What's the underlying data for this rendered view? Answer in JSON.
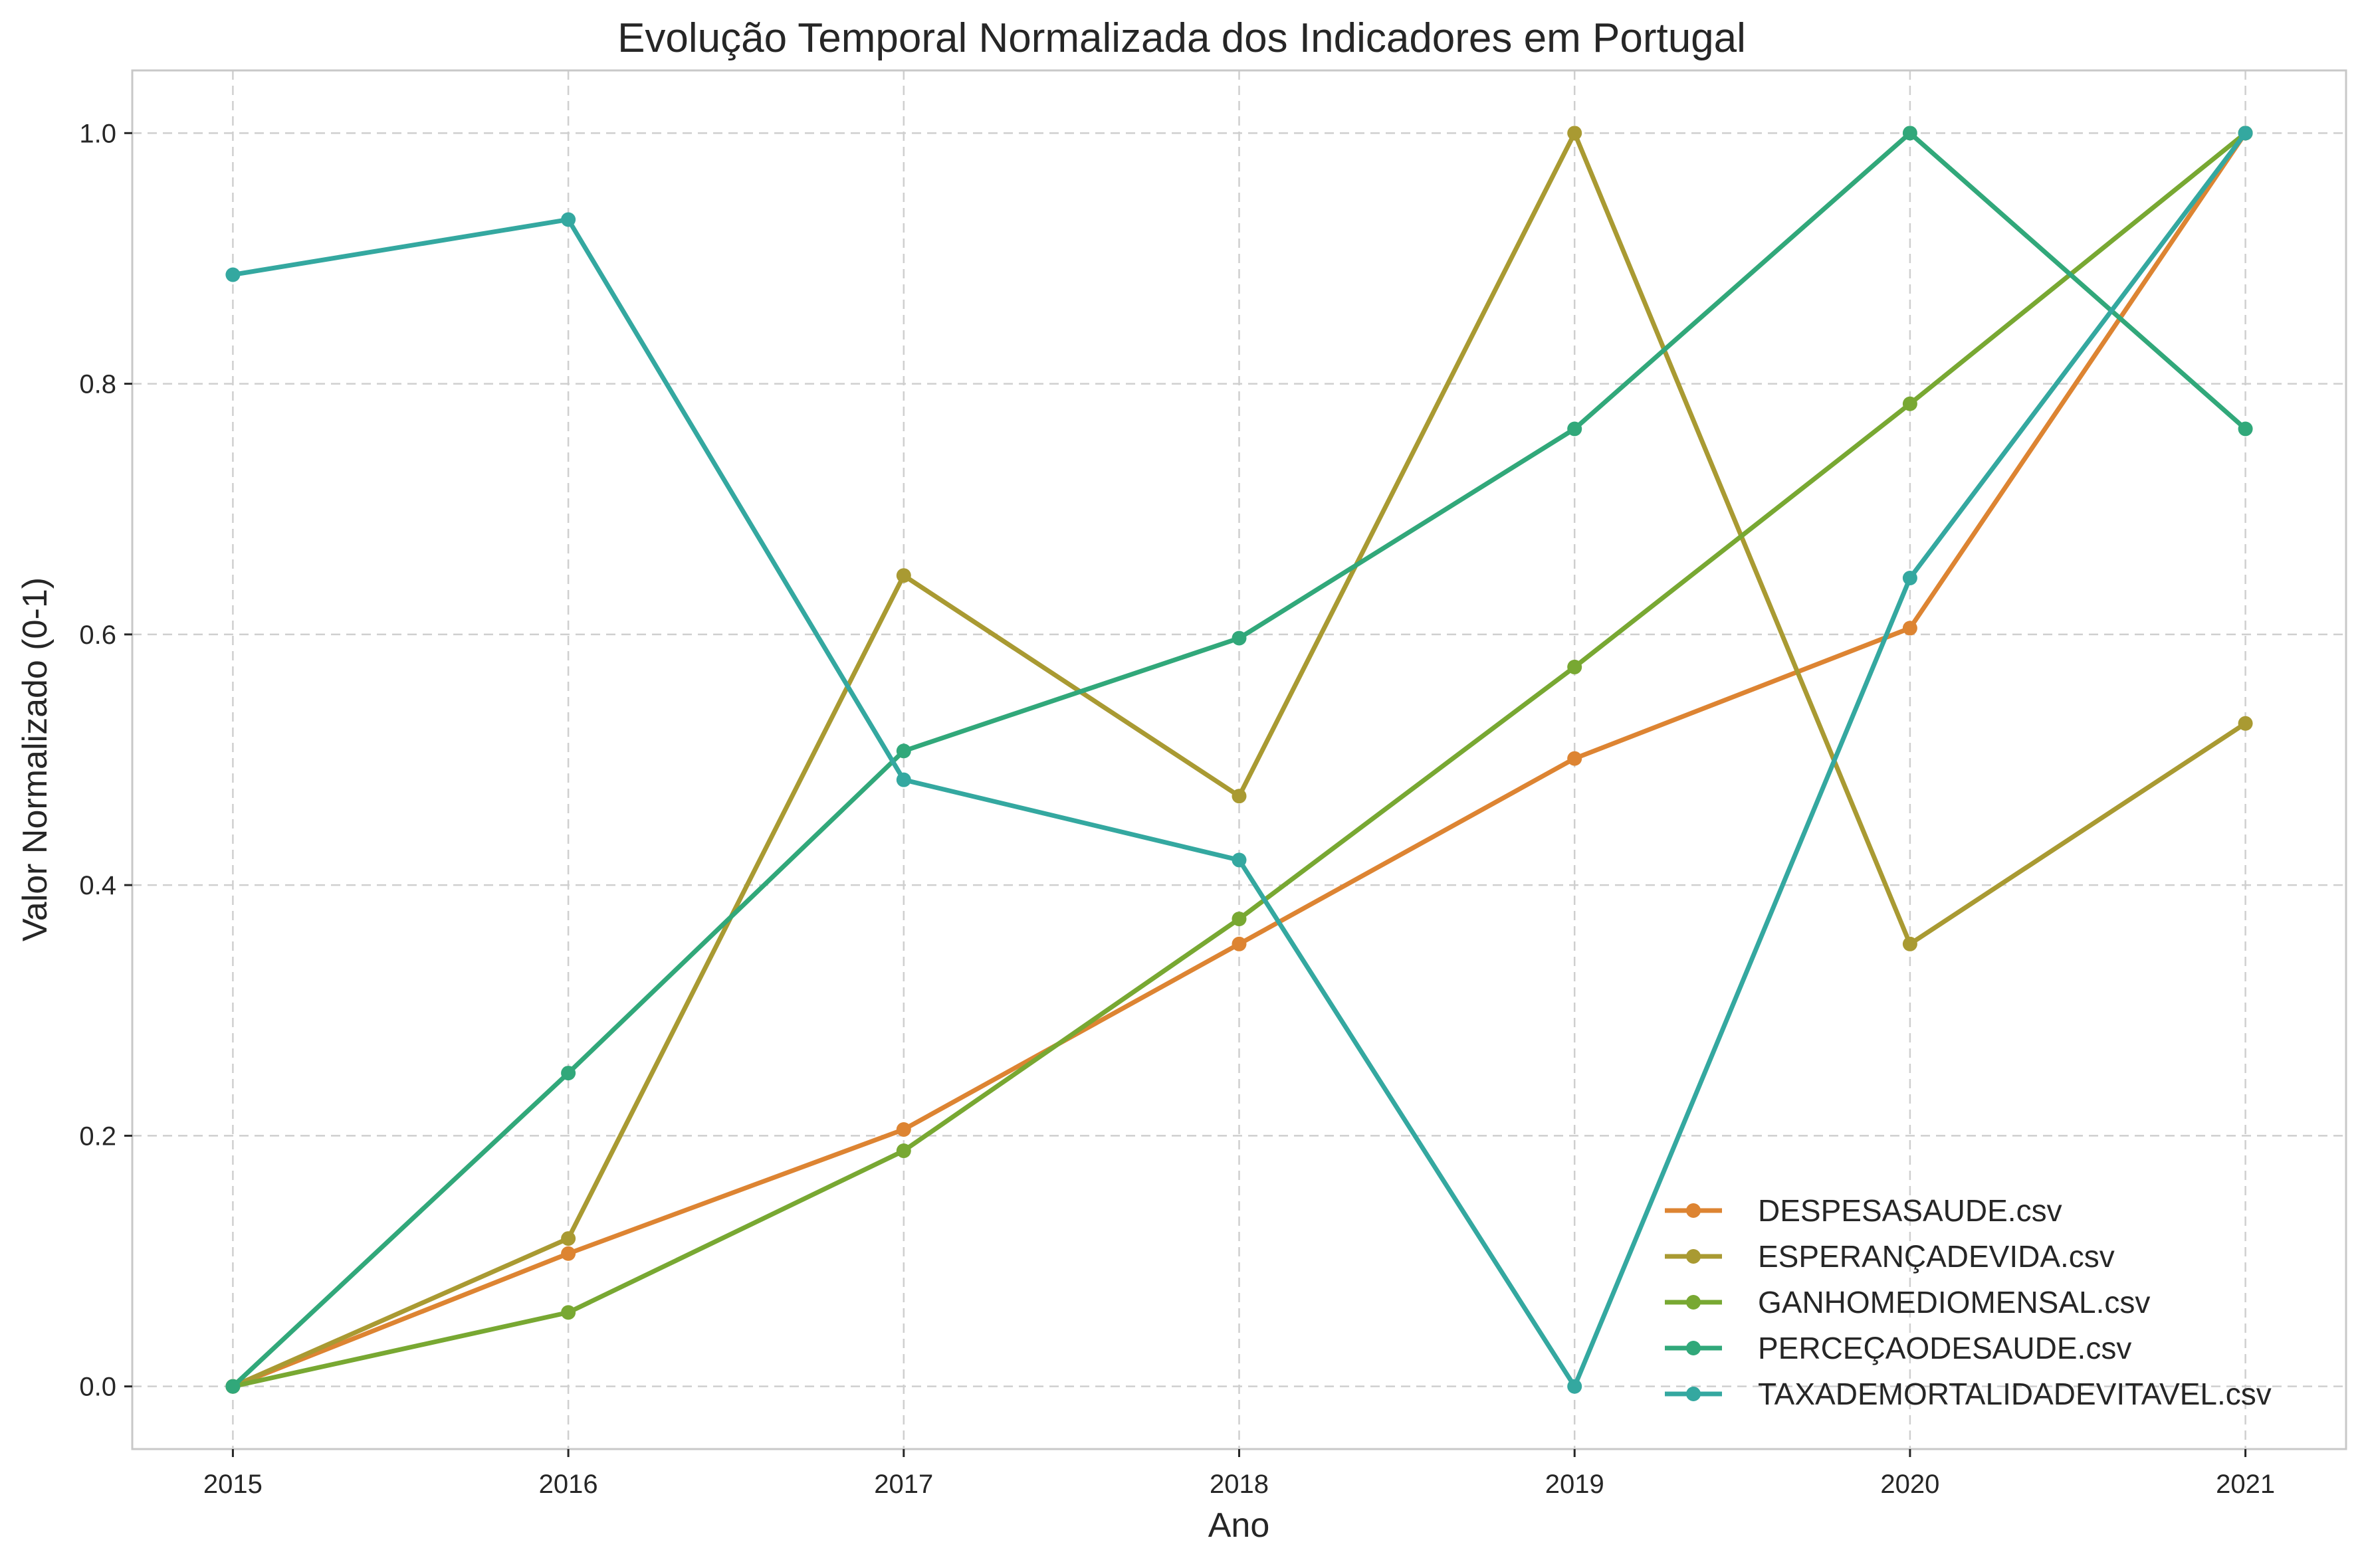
{
  "chart_data": {
    "type": "line",
    "title": "Evolução Temporal Normalizada dos Indicadores em Portugal",
    "xlabel": "Ano",
    "ylabel": "Valor Normalizado (0-1)",
    "x": [
      2015,
      2016,
      2017,
      2018,
      2019,
      2020,
      2021
    ],
    "x_tick_labels": [
      "2015",
      "2016",
      "2017",
      "2018",
      "2019",
      "2020",
      "2021"
    ],
    "y_ticks": [
      0.0,
      0.2,
      0.4,
      0.6,
      0.8,
      1.0
    ],
    "y_tick_labels": [
      "0.0",
      "0.2",
      "0.4",
      "0.6",
      "0.8",
      "1.0"
    ],
    "xlim": [
      2014.7,
      2021.3
    ],
    "ylim": [
      -0.05,
      1.05
    ],
    "grid": true,
    "legend_position": "lower-right",
    "series": [
      {
        "name": "DESPESASAUDE.csv",
        "color": "#dd8432",
        "marker": "circle",
        "values": [
          0.0,
          0.106,
          0.205,
          0.353,
          0.501,
          0.605,
          1.0
        ]
      },
      {
        "name": "ESPERANÇADEVIDA.csv",
        "color": "#a99a32",
        "marker": "circle",
        "values": [
          0.0,
          0.118,
          0.647,
          0.471,
          1.0,
          0.353,
          0.529
        ]
      },
      {
        "name": "GANHOMEDIOMENSAL.csv",
        "color": "#78a832",
        "marker": "circle",
        "values": [
          0.0,
          0.059,
          0.188,
          0.373,
          0.574,
          0.784,
          1.0
        ]
      },
      {
        "name": "PERCEÇAODESAUDE.csv",
        "color": "#31a87a",
        "marker": "circle",
        "values": [
          0.0,
          0.25,
          0.507,
          0.597,
          0.764,
          1.0,
          0.764
        ]
      },
      {
        "name": "TAXADEMORTALIDADEVITAVEL.csv",
        "color": "#34a8a0",
        "marker": "circle",
        "values": [
          0.887,
          0.931,
          0.484,
          0.42,
          0.0,
          0.645,
          1.0
        ]
      }
    ]
  }
}
